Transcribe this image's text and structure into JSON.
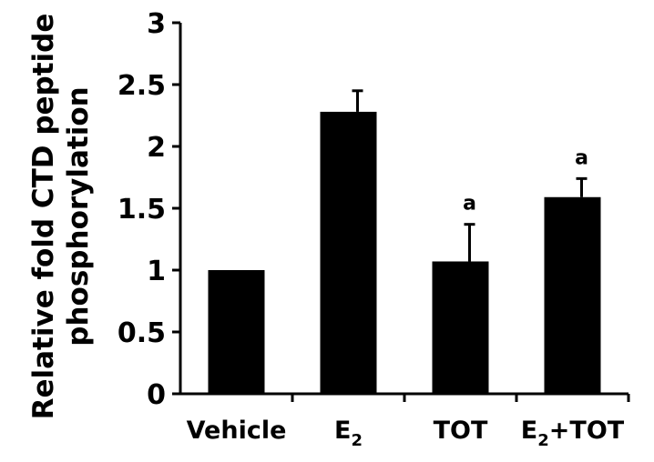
{
  "chart_data": {
    "type": "bar",
    "title": "",
    "ylabel_lines": [
      "Relative fold CTD peptide",
      "phosphorylation"
    ],
    "xlabel": "",
    "categories": [
      {
        "base": "Vehicle",
        "sub": "",
        "rest": ""
      },
      {
        "base": "E",
        "sub": "2",
        "rest": ""
      },
      {
        "base": "TOT",
        "sub": "",
        "rest": ""
      },
      {
        "base": "E",
        "sub": "2",
        "rest": "+TOT"
      }
    ],
    "values": [
      1.0,
      2.28,
      1.07,
      1.59
    ],
    "errors": [
      0,
      0.17,
      0.3,
      0.15
    ],
    "annotations": [
      "",
      "",
      "a",
      "a"
    ],
    "yticks": [
      "0",
      "0.5",
      "1",
      "1.5",
      "2",
      "2.5",
      "3"
    ],
    "ylim": [
      0,
      3
    ],
    "bar_color": "#000000",
    "grid": false,
    "legend": "none"
  }
}
